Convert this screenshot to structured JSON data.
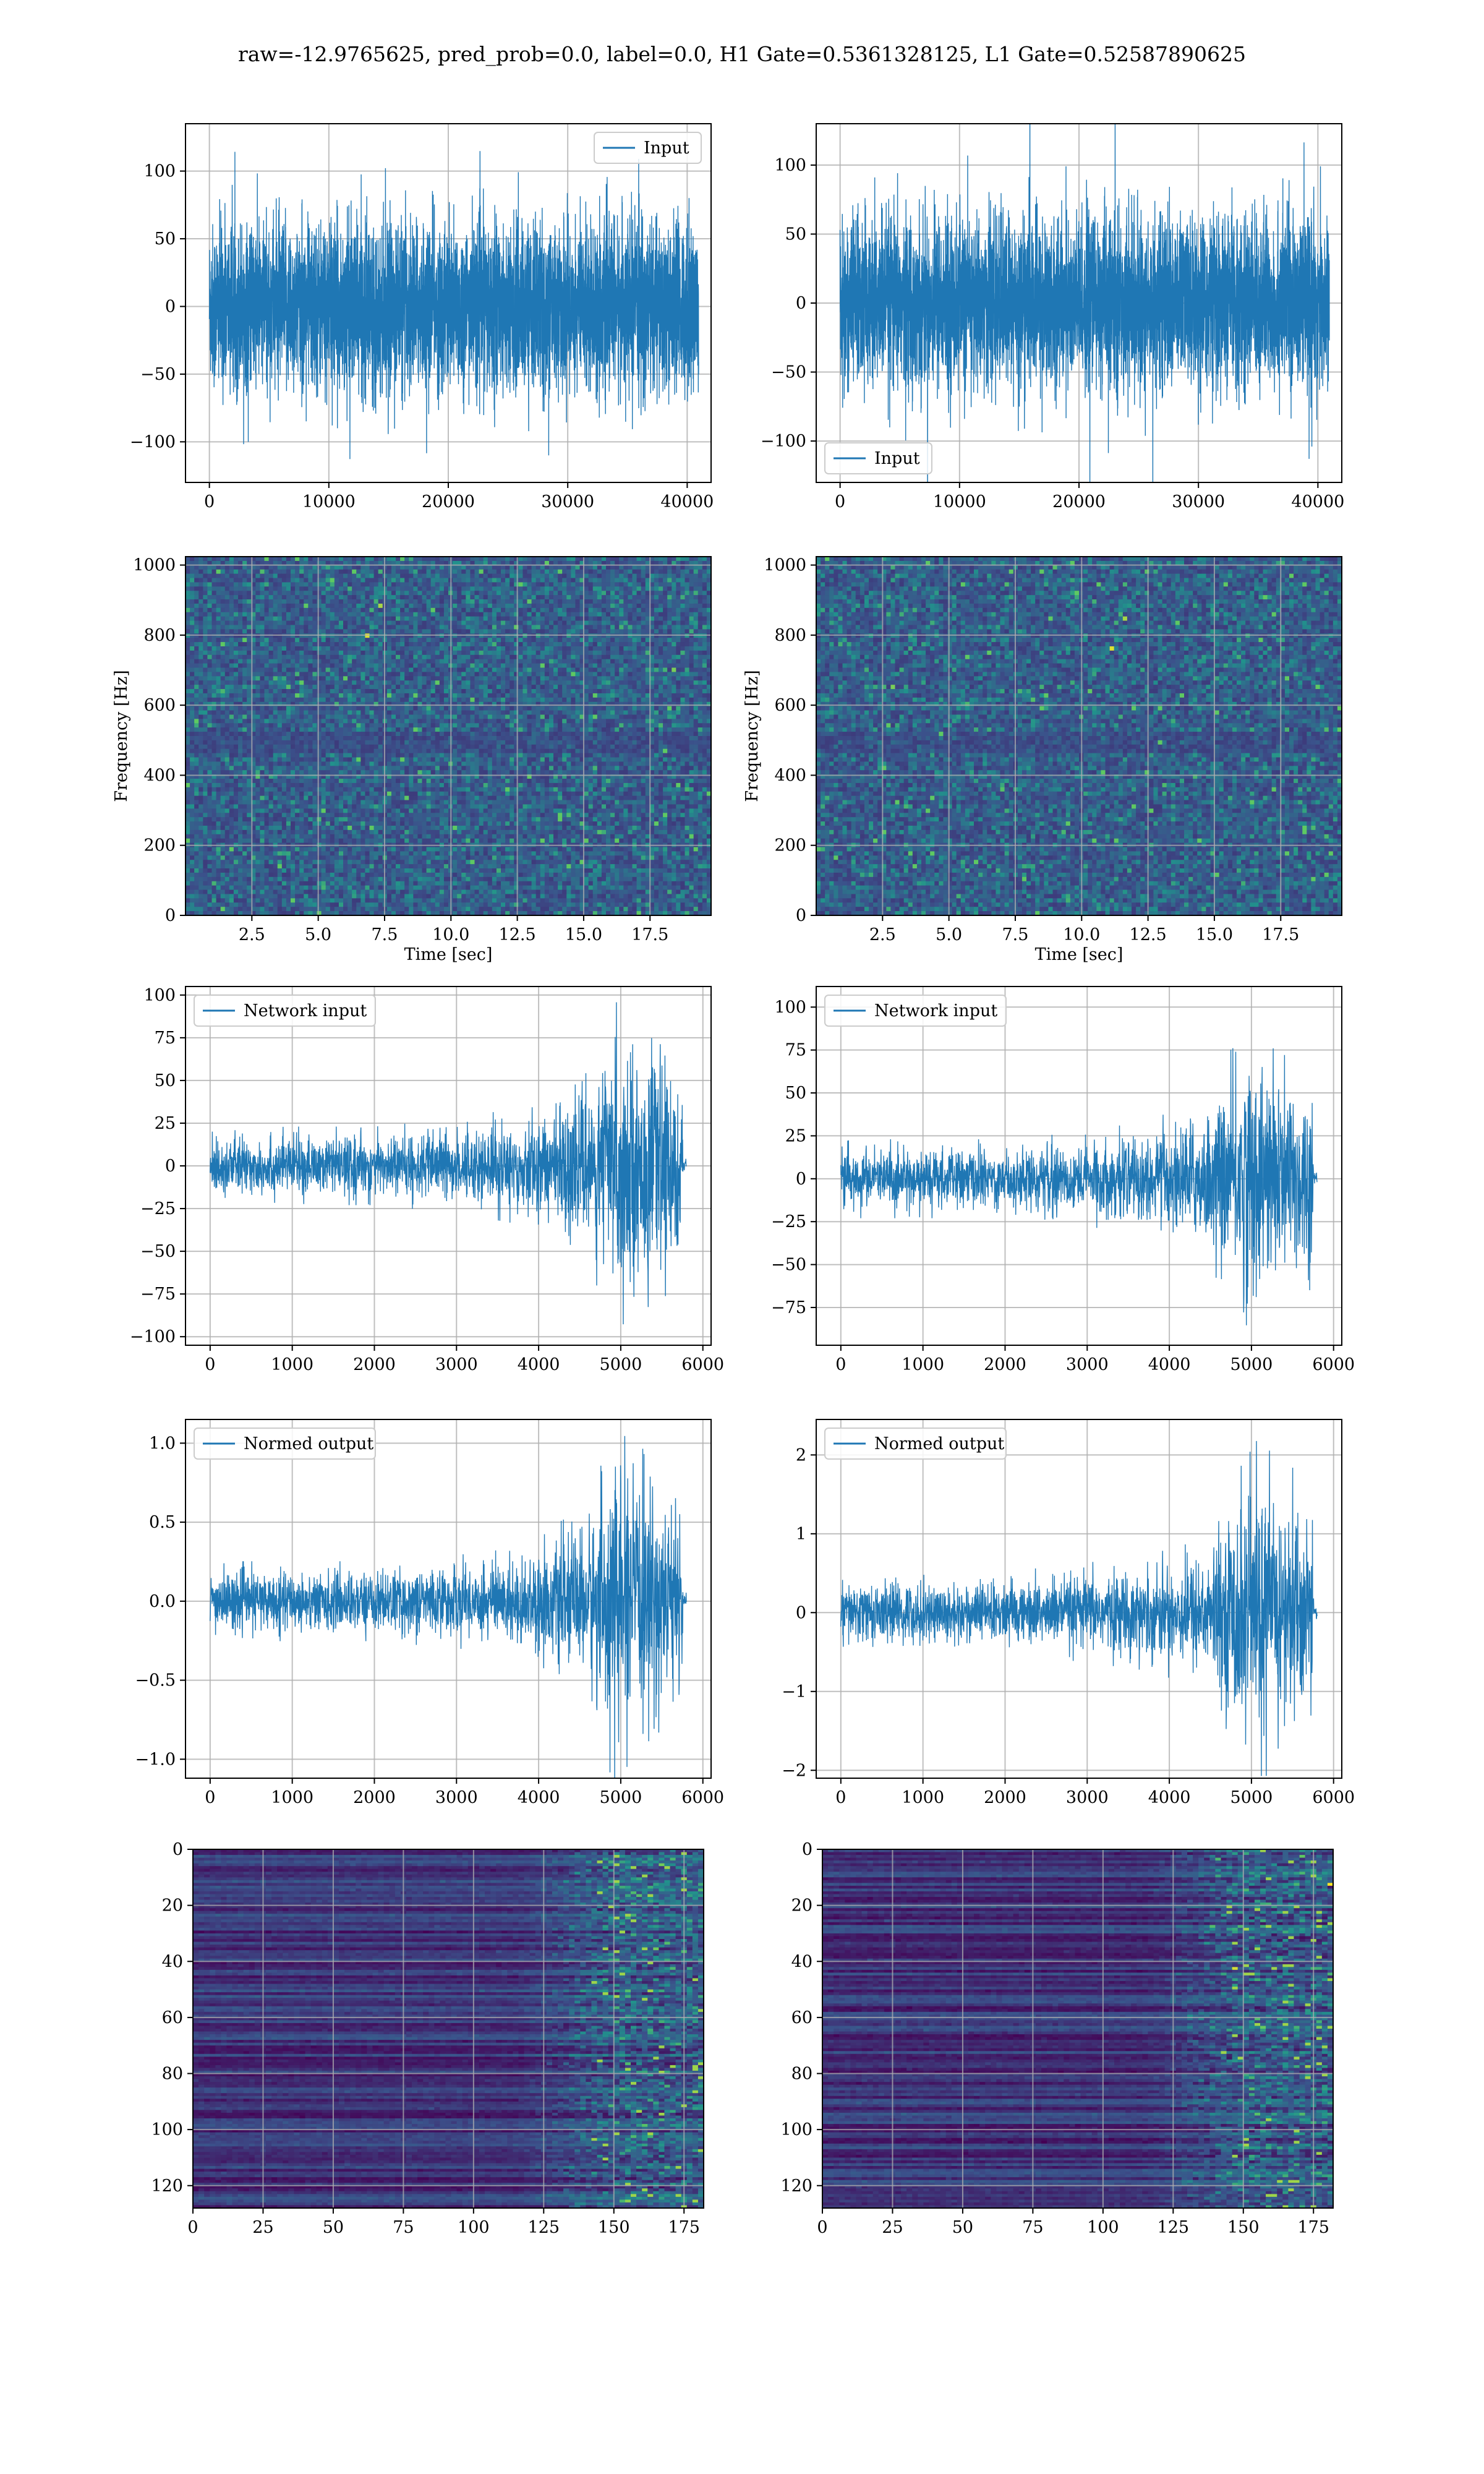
{
  "title": "raw=-12.9765625, pred_prob=0.0, label=0.0, H1 Gate=0.5361328125, L1 Gate=0.52587890625",
  "colors": {
    "line": "#1f77b4",
    "grid": "#b0b0b0",
    "viridis": [
      "#440154",
      "#3b528b",
      "#21918c",
      "#5ec962",
      "#fde725"
    ]
  },
  "chart_data": [
    {
      "type": "line",
      "series": [
        {
          "name": "Input",
          "n_samples": 40960,
          "amplitude_envelope": "approximately constant, |y| mostly < 80, peaks to ~120"
        }
      ],
      "xlim": [
        -2000,
        42000
      ],
      "ylim": [
        -130,
        135
      ],
      "xticks": [
        0,
        10000,
        20000,
        30000,
        40000
      ],
      "yticks": [
        -100,
        -50,
        0,
        50,
        100
      ],
      "legend": "upper right",
      "grid": true
    },
    {
      "type": "line",
      "series": [
        {
          "name": "Input",
          "n_samples": 40960,
          "amplitude_envelope": "approximately constant, |y| mostly < 80, peaks to ~120"
        }
      ],
      "xlim": [
        -2000,
        42000
      ],
      "ylim": [
        -130,
        130
      ],
      "xticks": [
        0,
        10000,
        20000,
        30000,
        40000
      ],
      "yticks": [
        -100,
        -50,
        0,
        50,
        100
      ],
      "legend": "lower left",
      "grid": true
    },
    {
      "type": "heatmap",
      "xlabel": "Time [sec]",
      "ylabel": "Frequency [Hz]",
      "xlim": [
        0,
        19.8
      ],
      "ylim": [
        0,
        1024
      ],
      "xticks": [
        2.5,
        5.0,
        7.5,
        10.0,
        12.5,
        15.0,
        17.5
      ],
      "yticks": [
        0,
        200,
        400,
        600,
        800,
        1000
      ],
      "grid": true,
      "notes": "spectrogram of stationary noise, darker band near 500 Hz"
    },
    {
      "type": "heatmap",
      "xlabel": "Time [sec]",
      "ylabel": "Frequency [Hz]",
      "xlim": [
        0,
        19.8
      ],
      "ylim": [
        0,
        1024
      ],
      "xticks": [
        2.5,
        5.0,
        7.5,
        10.0,
        12.5,
        15.0,
        17.5
      ],
      "yticks": [
        0,
        200,
        400,
        600,
        800,
        1000
      ],
      "grid": true,
      "notes": "spectrogram of stationary noise, darker band near 500 Hz"
    },
    {
      "type": "line",
      "series": [
        {
          "name": "Network input",
          "n_samples": 5800,
          "envelope": [
            [
              0,
              20
            ],
            [
              2000,
              20
            ],
            [
              3000,
              24
            ],
            [
              3800,
              30
            ],
            [
              4500,
              45
            ],
            [
              4700,
              60
            ],
            [
              4900,
              85
            ],
            [
              5200,
              75
            ],
            [
              5500,
              70
            ],
            [
              5740,
              60
            ],
            [
              5760,
              5
            ],
            [
              5800,
              5
            ]
          ]
        }
      ],
      "xlim": [
        -300,
        6100
      ],
      "ylim": [
        -105,
        105
      ],
      "xticks": [
        0,
        1000,
        2000,
        3000,
        4000,
        5000,
        6000
      ],
      "yticks": [
        -100,
        -75,
        -50,
        -25,
        0,
        25,
        50,
        75,
        100
      ],
      "legend": "upper left",
      "grid": true
    },
    {
      "type": "line",
      "series": [
        {
          "name": "Network input",
          "n_samples": 5800,
          "envelope": [
            [
              0,
              20
            ],
            [
              2000,
              20
            ],
            [
              3000,
              24
            ],
            [
              3800,
              30
            ],
            [
              4500,
              45
            ],
            [
              4700,
              60
            ],
            [
              4900,
              85
            ],
            [
              5200,
              75
            ],
            [
              5500,
              70
            ],
            [
              5740,
              60
            ],
            [
              5760,
              5
            ],
            [
              5800,
              5
            ]
          ]
        }
      ],
      "xlim": [
        -300,
        6100
      ],
      "ylim": [
        -97,
        112
      ],
      "xticks": [
        0,
        1000,
        2000,
        3000,
        4000,
        5000,
        6000
      ],
      "yticks": [
        -75,
        -50,
        -25,
        0,
        25,
        50,
        75,
        100
      ],
      "legend": "upper left",
      "grid": true
    },
    {
      "type": "line",
      "series": [
        {
          "name": "Normed output",
          "n_samples": 5800,
          "envelope": [
            [
              0,
              0.22
            ],
            [
              2000,
              0.22
            ],
            [
              3000,
              0.26
            ],
            [
              3800,
              0.32
            ],
            [
              4500,
              0.5
            ],
            [
              4700,
              0.7
            ],
            [
              4900,
              1.0
            ],
            [
              5200,
              0.85
            ],
            [
              5500,
              0.8
            ],
            [
              5740,
              0.7
            ],
            [
              5760,
              0.06
            ],
            [
              5800,
              0.06
            ]
          ]
        }
      ],
      "xlim": [
        -300,
        6100
      ],
      "ylim": [
        -1.12,
        1.15
      ],
      "xticks": [
        0,
        1000,
        2000,
        3000,
        4000,
        5000,
        6000
      ],
      "yticks": [
        -1.0,
        -0.5,
        0.0,
        0.5,
        1.0
      ],
      "legend": "upper left",
      "grid": true
    },
    {
      "type": "line",
      "series": [
        {
          "name": "Normed output",
          "n_samples": 5800,
          "envelope": [
            [
              0,
              0.45
            ],
            [
              2000,
              0.45
            ],
            [
              3000,
              0.55
            ],
            [
              3800,
              0.65
            ],
            [
              4500,
              0.9
            ],
            [
              4700,
              1.3
            ],
            [
              4900,
              2.0
            ],
            [
              5200,
              1.8
            ],
            [
              5500,
              1.6
            ],
            [
              5740,
              1.4
            ],
            [
              5760,
              0.1
            ],
            [
              5800,
              0.1
            ]
          ]
        }
      ],
      "xlim": [
        -300,
        6100
      ],
      "ylim": [
        -2.1,
        2.45
      ],
      "xticks": [
        0,
        1000,
        2000,
        3000,
        4000,
        5000,
        6000
      ],
      "yticks": [
        -2,
        -1,
        0,
        1,
        2
      ],
      "legend": "upper left",
      "grid": true
    },
    {
      "type": "heatmap",
      "xlim": [
        0,
        182
      ],
      "ylim": [
        128,
        0
      ],
      "xticks": [
        0,
        25,
        50,
        75,
        100,
        125,
        150,
        175
      ],
      "yticks": [
        0,
        20,
        40,
        60,
        80,
        100,
        120
      ],
      "grid": true,
      "notes": "128 channels x 182 steps; activity increases after step ~120"
    },
    {
      "type": "heatmap",
      "xlim": [
        0,
        182
      ],
      "ylim": [
        128,
        0
      ],
      "xticks": [
        0,
        25,
        50,
        75,
        100,
        125,
        150,
        175
      ],
      "yticks": [
        0,
        20,
        40,
        60,
        80,
        100,
        120
      ],
      "grid": true,
      "notes": "128 channels x 182 steps; activity increases after step ~120"
    }
  ]
}
